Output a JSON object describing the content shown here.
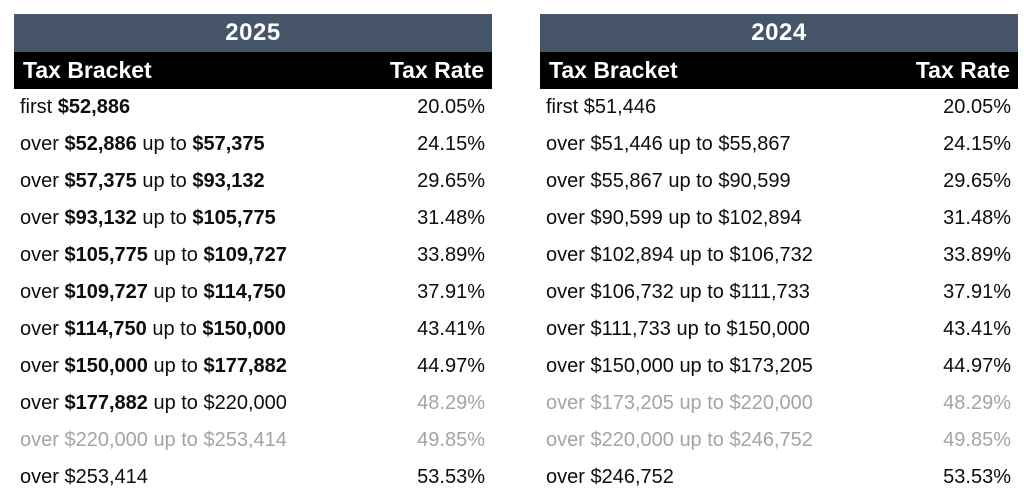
{
  "colors": {
    "year_band_bg": "#46556a",
    "column_header_bg": "#000000",
    "header_text": "#ffffff",
    "body_text": "#0d0d0d",
    "muted_text": "#a4a4a4",
    "page_bg": "#ffffff"
  },
  "chart_data": [
    {
      "type": "table",
      "title": "2025",
      "columns": [
        "Tax Bracket",
        "Tax Rate"
      ],
      "rows": [
        [
          "first $52,886",
          "20.05%"
        ],
        [
          "over $52,886 up to $57,375",
          "24.15%"
        ],
        [
          "over $57,375 up to $93,132",
          "29.65%"
        ],
        [
          "over $93,132 up to $105,775",
          "31.48%"
        ],
        [
          "over $105,775 up to $109,727",
          "33.89%"
        ],
        [
          "over $109,727 up to $114,750",
          "37.91%"
        ],
        [
          "over $114,750 up to $150,000",
          "43.41%"
        ],
        [
          "over $150,000 up to $177,882",
          "44.97%"
        ],
        [
          "over $177,882 up to $220,000",
          "48.29%"
        ],
        [
          "over $220,000 up to $253,414",
          "49.85%"
        ],
        [
          "over $253,414",
          "53.53%"
        ]
      ]
    },
    {
      "type": "table",
      "title": "2024",
      "columns": [
        "Tax Bracket",
        "Tax Rate"
      ],
      "rows": [
        [
          "first $51,446",
          "20.05%"
        ],
        [
          "over $51,446 up to $55,867",
          "24.15%"
        ],
        [
          "over $55,867 up to $90,599",
          "29.65%"
        ],
        [
          "over $90,599 up to $102,894",
          "31.48%"
        ],
        [
          "over $102,894 up to $106,732",
          "33.89%"
        ],
        [
          "over $106,732 up to $111,733",
          "37.91%"
        ],
        [
          "over $111,733 up to $150,000",
          "43.41%"
        ],
        [
          "over $150,000 up to $173,205",
          "44.97%"
        ],
        [
          "over $173,205 up to $220,000",
          "48.29%"
        ],
        [
          "over $220,000 up to $246,752",
          "49.85%"
        ],
        [
          "over $246,752",
          "53.53%"
        ]
      ]
    }
  ],
  "tables": [
    {
      "year": "2025",
      "columns": [
        "Tax Bracket",
        "Tax Rate"
      ],
      "rows": [
        {
          "bracket": [
            {
              "text": "first ",
              "bold": false,
              "gray": false
            },
            {
              "text": "$52,886",
              "bold": true,
              "gray": false
            }
          ],
          "rate": "20.05%",
          "rate_gray": false
        },
        {
          "bracket": [
            {
              "text": "over ",
              "bold": false,
              "gray": false
            },
            {
              "text": "$52,886",
              "bold": true,
              "gray": false
            },
            {
              "text": " up to ",
              "bold": false,
              "gray": false
            },
            {
              "text": "$57,375",
              "bold": true,
              "gray": false
            }
          ],
          "rate": "24.15%",
          "rate_gray": false
        },
        {
          "bracket": [
            {
              "text": "over ",
              "bold": false,
              "gray": false
            },
            {
              "text": "$57,375",
              "bold": true,
              "gray": false
            },
            {
              "text": " up to ",
              "bold": false,
              "gray": false
            },
            {
              "text": "$93,132",
              "bold": true,
              "gray": false
            }
          ],
          "rate": "29.65%",
          "rate_gray": false
        },
        {
          "bracket": [
            {
              "text": "over ",
              "bold": false,
              "gray": false
            },
            {
              "text": "$93,132",
              "bold": true,
              "gray": false
            },
            {
              "text": " up to ",
              "bold": false,
              "gray": false
            },
            {
              "text": "$105,775",
              "bold": true,
              "gray": false
            }
          ],
          "rate": "31.48%",
          "rate_gray": false
        },
        {
          "bracket": [
            {
              "text": "over ",
              "bold": false,
              "gray": false
            },
            {
              "text": "$105,775",
              "bold": true,
              "gray": false
            },
            {
              "text": " up to ",
              "bold": false,
              "gray": false
            },
            {
              "text": "$109,727",
              "bold": true,
              "gray": false
            }
          ],
          "rate": "33.89%",
          "rate_gray": false
        },
        {
          "bracket": [
            {
              "text": "over ",
              "bold": false,
              "gray": false
            },
            {
              "text": "$109,727",
              "bold": true,
              "gray": false
            },
            {
              "text": " up to ",
              "bold": false,
              "gray": false
            },
            {
              "text": "$114,750",
              "bold": true,
              "gray": false
            }
          ],
          "rate": "37.91%",
          "rate_gray": false
        },
        {
          "bracket": [
            {
              "text": "over ",
              "bold": false,
              "gray": false
            },
            {
              "text": "$114,750",
              "bold": true,
              "gray": false
            },
            {
              "text": " up to ",
              "bold": false,
              "gray": false
            },
            {
              "text": "$150,000",
              "bold": true,
              "gray": false
            }
          ],
          "rate": "43.41%",
          "rate_gray": false
        },
        {
          "bracket": [
            {
              "text": "over ",
              "bold": false,
              "gray": false
            },
            {
              "text": "$150,000",
              "bold": true,
              "gray": false
            },
            {
              "text": " up to ",
              "bold": false,
              "gray": false
            },
            {
              "text": "$177,882",
              "bold": true,
              "gray": false
            }
          ],
          "rate": "44.97%",
          "rate_gray": false
        },
        {
          "bracket": [
            {
              "text": "over ",
              "bold": false,
              "gray": false
            },
            {
              "text": "$177,882",
              "bold": true,
              "gray": false
            },
            {
              "text": " up to $220,000",
              "bold": false,
              "gray": false
            }
          ],
          "rate": "48.29%",
          "rate_gray": true
        },
        {
          "bracket": [
            {
              "text": "over $220,000 up to $253,414",
              "bold": false,
              "gray": true
            }
          ],
          "rate": "49.85%",
          "rate_gray": true
        },
        {
          "bracket": [
            {
              "text": "over $253,414",
              "bold": false,
              "gray": false
            }
          ],
          "rate": "53.53%",
          "rate_gray": false
        }
      ]
    },
    {
      "year": "2024",
      "columns": [
        "Tax Bracket",
        "Tax Rate"
      ],
      "rows": [
        {
          "bracket": [
            {
              "text": "first $51,446",
              "bold": false,
              "gray": false
            }
          ],
          "rate": "20.05%",
          "rate_gray": false
        },
        {
          "bracket": [
            {
              "text": "over $51,446 up to $55,867",
              "bold": false,
              "gray": false
            }
          ],
          "rate": "24.15%",
          "rate_gray": false
        },
        {
          "bracket": [
            {
              "text": "over $55,867 up to $90,599",
              "bold": false,
              "gray": false
            }
          ],
          "rate": "29.65%",
          "rate_gray": false
        },
        {
          "bracket": [
            {
              "text": "over $90,599 up to $102,894",
              "bold": false,
              "gray": false
            }
          ],
          "rate": "31.48%",
          "rate_gray": false
        },
        {
          "bracket": [
            {
              "text": "over $102,894 up to $106,732",
              "bold": false,
              "gray": false
            }
          ],
          "rate": "33.89%",
          "rate_gray": false
        },
        {
          "bracket": [
            {
              "text": "over $106,732 up to $111,733",
              "bold": false,
              "gray": false
            }
          ],
          "rate": "37.91%",
          "rate_gray": false
        },
        {
          "bracket": [
            {
              "text": "over $111,733 up to $150,000",
              "bold": false,
              "gray": false
            }
          ],
          "rate": "43.41%",
          "rate_gray": false
        },
        {
          "bracket": [
            {
              "text": "over $150,000 up to $173,205",
              "bold": false,
              "gray": false
            }
          ],
          "rate": "44.97%",
          "rate_gray": false
        },
        {
          "bracket": [
            {
              "text": "over $173,205 up to $220,000",
              "bold": false,
              "gray": true
            }
          ],
          "rate": "48.29%",
          "rate_gray": true
        },
        {
          "bracket": [
            {
              "text": "over $220,000 up to $246,752",
              "bold": false,
              "gray": true
            }
          ],
          "rate": "49.85%",
          "rate_gray": true
        },
        {
          "bracket": [
            {
              "text": "over $246,752",
              "bold": false,
              "gray": false
            }
          ],
          "rate": "53.53%",
          "rate_gray": false
        }
      ]
    }
  ]
}
